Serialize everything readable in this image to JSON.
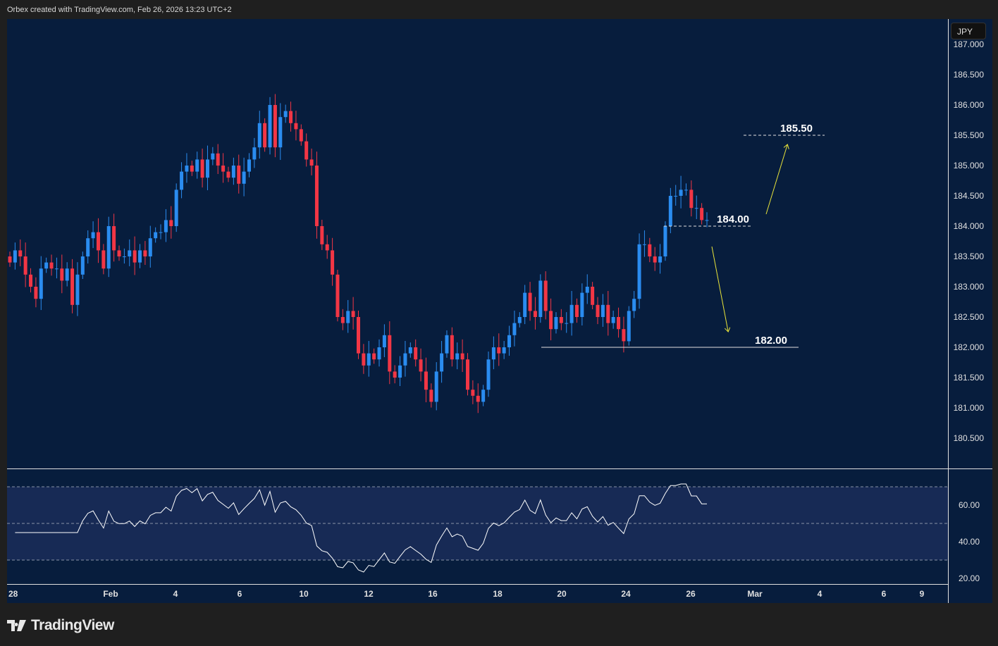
{
  "header": {
    "text": "Orbex created with TradingView.com, Feb 26, 2026 13:23 UTC+2"
  },
  "currency_badge": "JPY",
  "logo_text": "TradingView",
  "colors": {
    "bg": "#071d3d",
    "up": "#2a8cf0",
    "down": "#f23645",
    "rsi_band": "#172a55",
    "arrow": "#e8e33a"
  },
  "chart_data": {
    "type": "candlestick",
    "symbol_currency": "JPY",
    "price_axis": {
      "min": 180.5,
      "max": 187.0,
      "ticks": [
        "187.000",
        "186.500",
        "186.000",
        "185.500",
        "185.000",
        "184.500",
        "184.000",
        "183.500",
        "183.000",
        "182.500",
        "182.000",
        "181.500",
        "181.000",
        "180.500"
      ]
    },
    "x_ticks": [
      "28",
      "Feb",
      "4",
      "6",
      "10",
      "12",
      "16",
      "18",
      "20",
      "24",
      "26",
      "Mar",
      "4",
      "6",
      "9"
    ],
    "closes": [
      183.4,
      183.6,
      183.5,
      183.2,
      183.0,
      182.8,
      183.3,
      183.4,
      183.3,
      183.3,
      183.1,
      183.3,
      182.7,
      183.2,
      183.5,
      183.8,
      183.9,
      183.6,
      183.3,
      184.0,
      183.6,
      183.5,
      183.5,
      183.6,
      183.4,
      183.6,
      183.5,
      183.8,
      183.9,
      183.9,
      184.1,
      184.0,
      184.6,
      184.9,
      185.0,
      184.9,
      185.1,
      184.8,
      185.1,
      185.2,
      185.0,
      184.9,
      184.8,
      185.0,
      184.7,
      184.9,
      185.1,
      185.3,
      185.7,
      185.3,
      186.0,
      185.3,
      185.8,
      185.9,
      185.7,
      185.6,
      185.4,
      185.1,
      185.0,
      184.0,
      183.7,
      183.6,
      183.2,
      182.5,
      182.4,
      182.6,
      182.5,
      181.9,
      181.7,
      181.9,
      181.8,
      182.0,
      182.2,
      181.6,
      181.5,
      181.7,
      181.9,
      182.0,
      181.8,
      181.6,
      181.3,
      181.1,
      181.6,
      181.9,
      182.2,
      181.8,
      181.9,
      181.8,
      181.3,
      181.2,
      181.1,
      181.3,
      181.8,
      182.0,
      181.9,
      182.0,
      182.2,
      182.4,
      182.5,
      182.9,
      182.6,
      182.5,
      183.1,
      182.6,
      182.3,
      182.5,
      182.4,
      182.4,
      182.7,
      182.5,
      182.9,
      183.0,
      182.7,
      182.5,
      182.7,
      182.4,
      182.5,
      182.3,
      182.1,
      182.6,
      182.8,
      183.7,
      183.7,
      183.5,
      183.4,
      183.5,
      184.0,
      184.5,
      184.5,
      184.6,
      184.6,
      184.3,
      184.3,
      184.1,
      184.1
    ],
    "rsi": {
      "period": 14,
      "axis_ticks": [
        "60.00",
        "40.00",
        "20.00"
      ],
      "bands": [
        70,
        50,
        30
      ],
      "min": 15,
      "max": 78
    },
    "annotations": [
      {
        "label": "185.50",
        "price": 185.5,
        "style": "dashed"
      },
      {
        "label": "184.00",
        "price": 184.0,
        "style": "dashed"
      },
      {
        "label": "182.00",
        "price": 182.0,
        "style": "solid"
      }
    ],
    "arrows": [
      {
        "direction": "up",
        "target": 185.5
      },
      {
        "direction": "down",
        "target": 182.0
      }
    ]
  }
}
